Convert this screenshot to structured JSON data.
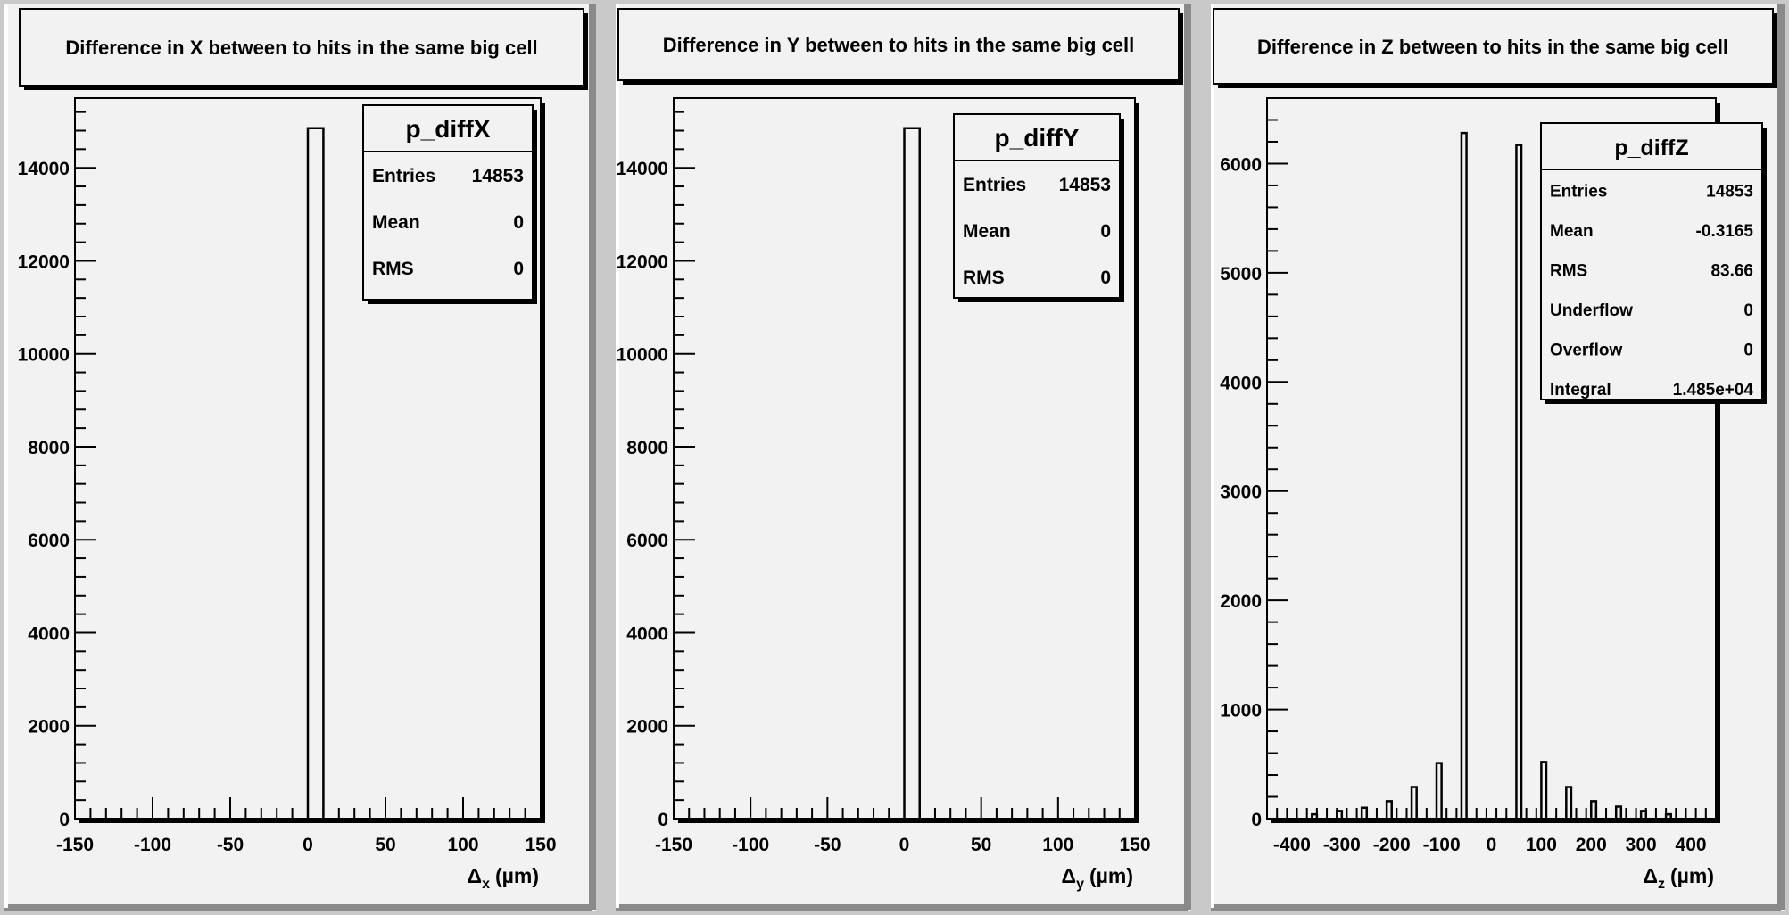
{
  "chart_data": [
    {
      "type": "bar",
      "title": "Difference in X between to hits in the same big cell",
      "stats": {
        "name": "p_diffX",
        "rows": [
          {
            "label": "Entries",
            "value": "14853"
          },
          {
            "label": "Mean",
            "value": "0"
          },
          {
            "label": "RMS",
            "value": "0"
          }
        ]
      },
      "xlabel": {
        "symbol": "Δ",
        "sub": "x",
        "unit": "(µm)"
      },
      "xlim": [
        -150,
        150
      ],
      "ylim": [
        0,
        15500
      ],
      "x_ticks": [
        "-150",
        "-100",
        "-50",
        "0",
        "50",
        "100",
        "150"
      ],
      "y_ticks": [
        "0",
        "2000",
        "4000",
        "6000",
        "8000",
        "10000",
        "12000",
        "14000"
      ],
      "bins": [
        {
          "x0": 0,
          "x1": 10,
          "value": 14853
        }
      ]
    },
    {
      "type": "bar",
      "title": "Difference in Y between to hits in the same big cell",
      "stats": {
        "name": "p_diffY",
        "rows": [
          {
            "label": "Entries",
            "value": "14853"
          },
          {
            "label": "Mean",
            "value": "0"
          },
          {
            "label": "RMS",
            "value": "0"
          }
        ]
      },
      "xlabel": {
        "symbol": "Δ",
        "sub": "y",
        "unit": "(µm)"
      },
      "xlim": [
        -150,
        150
      ],
      "ylim": [
        0,
        15500
      ],
      "x_ticks": [
        "-150",
        "-100",
        "-50",
        "0",
        "50",
        "100",
        "150"
      ],
      "y_ticks": [
        "0",
        "2000",
        "4000",
        "6000",
        "8000",
        "10000",
        "12000",
        "14000"
      ],
      "bins": [
        {
          "x0": 0,
          "x1": 10,
          "value": 14853
        }
      ]
    },
    {
      "type": "bar",
      "title": "Difference in Z between to hits in the same big cell",
      "stats": {
        "name": "p_diffZ",
        "rows": [
          {
            "label": "Entries",
            "value": "14853"
          },
          {
            "label": "Mean",
            "value": "-0.3165"
          },
          {
            "label": "RMS",
            "value": "83.66"
          },
          {
            "label": "Underflow",
            "value": "0"
          },
          {
            "label": "Overflow",
            "value": "0"
          },
          {
            "label": "Integral",
            "value": "1.485e+04"
          }
        ]
      },
      "xlabel": {
        "symbol": "Δ",
        "sub": "z",
        "unit": "(µm)"
      },
      "xlim": [
        -450,
        450
      ],
      "ylim": [
        0,
        6600
      ],
      "x_ticks": [
        "-400",
        "-300",
        "-200",
        "-100",
        "0",
        "100",
        "200",
        "300",
        "400"
      ],
      "y_ticks": [
        "0",
        "1000",
        "2000",
        "3000",
        "4000",
        "5000",
        "6000"
      ],
      "bins": [
        {
          "x0": -360,
          "x1": -350,
          "value": 40
        },
        {
          "x0": -310,
          "x1": -300,
          "value": 70
        },
        {
          "x0": -260,
          "x1": -250,
          "value": 100
        },
        {
          "x0": -210,
          "x1": -200,
          "value": 160
        },
        {
          "x0": -160,
          "x1": -150,
          "value": 290
        },
        {
          "x0": -110,
          "x1": -100,
          "value": 510
        },
        {
          "x0": -60,
          "x1": -50,
          "value": 6280
        },
        {
          "x0": 50,
          "x1": 60,
          "value": 6170
        },
        {
          "x0": 100,
          "x1": 110,
          "value": 520
        },
        {
          "x0": 150,
          "x1": 160,
          "value": 290
        },
        {
          "x0": 200,
          "x1": 210,
          "value": 160
        },
        {
          "x0": 250,
          "x1": 260,
          "value": 110
        },
        {
          "x0": 300,
          "x1": 310,
          "value": 70
        },
        {
          "x0": 350,
          "x1": 360,
          "value": 40
        }
      ]
    }
  ]
}
